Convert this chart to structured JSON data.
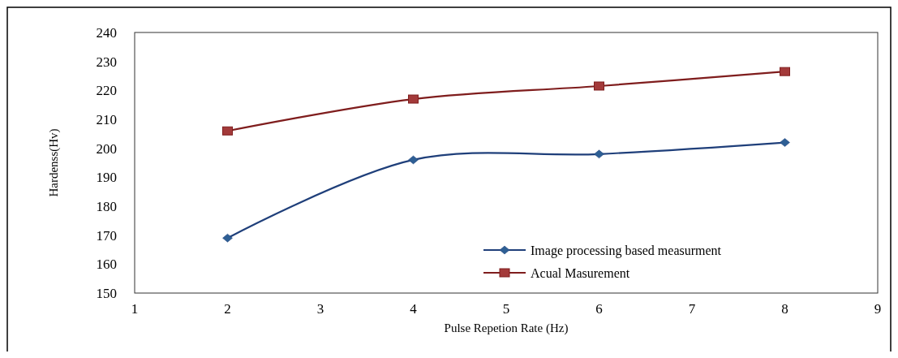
{
  "chart_data": {
    "type": "line",
    "xlabel": "Pulse Repetion Rate (Hz)",
    "ylabel": "Hardenss(Hv)",
    "xlim": [
      1,
      9
    ],
    "xticks": [
      1,
      2,
      3,
      4,
      5,
      6,
      7,
      8,
      9
    ],
    "ylim": [
      150,
      240
    ],
    "yticks": [
      150,
      160,
      170,
      180,
      190,
      200,
      210,
      220,
      230,
      240
    ],
    "x": [
      2,
      4,
      6,
      8
    ],
    "series": [
      {
        "name": "Image processing based measurment",
        "color": "#1f3f7a",
        "marker": "diamond",
        "values": [
          169,
          196,
          198,
          202
        ]
      },
      {
        "name": "Acual Masurement",
        "color": "#7f1d1d",
        "marker": "square",
        "values": [
          206,
          217,
          221.5,
          226.5
        ]
      }
    ],
    "legend": "bottom right",
    "grid": false
  }
}
